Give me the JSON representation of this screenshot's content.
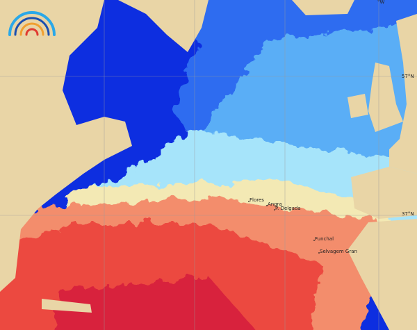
{
  "map": {
    "latitude_labels": [
      "57°N",
      "37°N"
    ],
    "longitude_labels": [
      "°W"
    ],
    "places": [
      "Flores",
      "Angra",
      "P. Delgada",
      "Funchal",
      "Selvagem Gran"
    ]
  }
}
